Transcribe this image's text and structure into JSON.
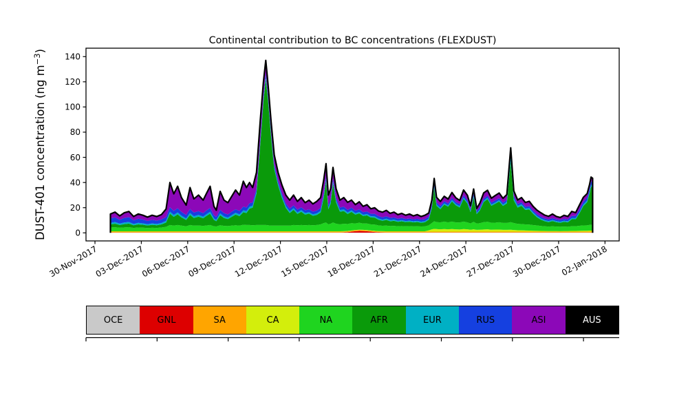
{
  "title": "Continental contribution to BC concentrations (FLEXDUST)",
  "legend": {
    "items": [
      {
        "label": "OCE",
        "color": "#c9c9c9",
        "text_color": "#000000"
      },
      {
        "label": "GNL",
        "color": "#dd0000",
        "text_color": "#000000"
      },
      {
        "label": "SA",
        "color": "#ffa500",
        "text_color": "#000000"
      },
      {
        "label": "CA",
        "color": "#d3ee0c",
        "text_color": "#000000"
      },
      {
        "label": "NA",
        "color": "#1fd41f",
        "text_color": "#000000"
      },
      {
        "label": "AFR",
        "color": "#0a9a0a",
        "text_color": "#000000"
      },
      {
        "label": "EUR",
        "color": "#00b0c4",
        "text_color": "#000000"
      },
      {
        "label": "RUS",
        "color": "#1540e0",
        "text_color": "#000000"
      },
      {
        "label": "ASI",
        "color": "#8c08b8",
        "text_color": "#000000"
      },
      {
        "label": "AUS",
        "color": "#000000",
        "text_color": "#ffffff"
      }
    ]
  },
  "chart_data": {
    "type": "area",
    "stacked": true,
    "grid": false,
    "legend_position": "bottom-strip",
    "title": "Continental contribution to BC concentrations (FLEXDUST)",
    "xlabel": "",
    "ylabel": "DUST-401 concentration (ng m−3)",
    "ylabel_main": "DUST-401 concentration (ng m",
    "ylabel_sup": "−3",
    "ylabel_close": ")",
    "ylim": [
      -6.4,
      146.7
    ],
    "ytick_values": [
      0,
      20,
      40,
      60,
      80,
      100,
      120,
      140
    ],
    "x_unit": "days since 30-Nov-2017",
    "xlim_days": [
      -0.58,
      33.92
    ],
    "xtick_days": [
      0,
      3,
      6,
      9,
      12,
      15,
      18,
      21,
      24,
      27,
      30,
      33
    ],
    "xtick_labels": [
      "30-Nov-2017",
      "03-Dec-2017",
      "06-Dec-2017",
      "09-Dec-2017",
      "12-Dec-2017",
      "15-Dec-2017",
      "18-Dec-2017",
      "21-Dec-2017",
      "24-Dec-2017",
      "27-Dec-2017",
      "30-Dec-2017",
      "02-Jan-2018"
    ],
    "outline_color": "#000000",
    "x": [
      1.0,
      1.3,
      1.6,
      1.9,
      2.2,
      2.5,
      2.8,
      3.1,
      3.4,
      3.7,
      4.0,
      4.3,
      4.6,
      4.85,
      5.1,
      5.35,
      5.6,
      5.9,
      6.15,
      6.4,
      6.7,
      7.0,
      7.2,
      7.45,
      7.7,
      7.85,
      8.1,
      8.35,
      8.6,
      8.85,
      9.1,
      9.35,
      9.6,
      9.8,
      10.0,
      10.2,
      10.45,
      10.7,
      10.9,
      11.05,
      11.2,
      11.4,
      11.6,
      11.85,
      12.1,
      12.35,
      12.6,
      12.85,
      13.1,
      13.35,
      13.6,
      13.85,
      14.1,
      14.35,
      14.6,
      14.8,
      14.95,
      15.1,
      15.25,
      15.4,
      15.6,
      15.85,
      16.1,
      16.35,
      16.6,
      16.85,
      17.1,
      17.35,
      17.6,
      17.85,
      18.1,
      18.35,
      18.6,
      18.85,
      19.1,
      19.35,
      19.6,
      19.85,
      20.1,
      20.35,
      20.6,
      20.85,
      21.1,
      21.35,
      21.6,
      21.8,
      21.95,
      22.1,
      22.35,
      22.6,
      22.85,
      23.1,
      23.35,
      23.6,
      23.85,
      24.1,
      24.3,
      24.5,
      24.7,
      24.9,
      25.15,
      25.4,
      25.65,
      25.9,
      26.15,
      26.4,
      26.65,
      26.9,
      27.1,
      27.35,
      27.6,
      27.85,
      28.1,
      28.35,
      28.6,
      28.85,
      29.1,
      29.35,
      29.6,
      29.85,
      30.1,
      30.35,
      30.6,
      30.85,
      31.1,
      31.35,
      31.6,
      31.85,
      32.0,
      32.1,
      32.2
    ],
    "series": [
      {
        "name": "OCE",
        "color": "#c9c9c9",
        "constant": 0.15
      },
      {
        "name": "GNL",
        "color": "#dd0000",
        "values": [
          0.15,
          0.15,
          0.15,
          0.15,
          0.15,
          0.15,
          0.15,
          0.15,
          0.15,
          0.15,
          0.15,
          0.15,
          0.15,
          0.15,
          0.15,
          0.15,
          0.15,
          0.15,
          0.15,
          0.15,
          0.15,
          0.15,
          0.15,
          0.15,
          0.15,
          0.15,
          0.15,
          0.15,
          0.15,
          0.15,
          0.15,
          0.15,
          0.15,
          0.15,
          0.15,
          0.15,
          0.15,
          0.15,
          0.15,
          0.15,
          0.15,
          0.15,
          0.15,
          0.15,
          0.15,
          0.15,
          0.15,
          0.15,
          0.15,
          0.15,
          0.15,
          0.15,
          0.15,
          0.15,
          0.15,
          0.15,
          0.15,
          0.15,
          0.15,
          0.15,
          0.15,
          0.15,
          0.2,
          0.4,
          0.8,
          1.2,
          1.4,
          1.3,
          1.1,
          0.8,
          0.5,
          0.3,
          0.2,
          0.15,
          0.15,
          0.15,
          0.15,
          0.15,
          0.15,
          0.15,
          0.15,
          0.15,
          0.15,
          0.15,
          0.15,
          0.15,
          0.15,
          0.15,
          0.15,
          0.15,
          0.15,
          0.15,
          0.15,
          0.15,
          0.15,
          0.15,
          0.15,
          0.15,
          0.15,
          0.15,
          0.15,
          0.15,
          0.15,
          0.15,
          0.15,
          0.15,
          0.15,
          0.15,
          0.15,
          0.15,
          0.15,
          0.15,
          0.15,
          0.15,
          0.15,
          0.15,
          0.15,
          0.15,
          0.15,
          0.15,
          0.15,
          0.15,
          0.15,
          0.15,
          0.15,
          0.15,
          0.15,
          0.15,
          0.15,
          0.15,
          0.15
        ]
      },
      {
        "name": "SA",
        "color": "#ffa500",
        "constant": 0.7
      },
      {
        "name": "CA",
        "color": "#d3ee0c",
        "values": [
          0.25,
          0.25,
          0.25,
          0.25,
          0.25,
          0.25,
          0.25,
          0.25,
          0.25,
          0.25,
          0.25,
          0.25,
          0.25,
          0.25,
          0.25,
          0.25,
          0.25,
          0.25,
          0.25,
          0.25,
          0.25,
          0.25,
          0.25,
          0.25,
          0.25,
          0.25,
          0.25,
          0.25,
          0.25,
          0.25,
          0.25,
          0.25,
          0.25,
          0.25,
          0.25,
          0.25,
          0.25,
          0.25,
          0.25,
          0.25,
          0.25,
          0.25,
          0.25,
          0.25,
          0.25,
          0.25,
          0.25,
          0.25,
          0.25,
          0.25,
          0.25,
          0.25,
          0.25,
          0.25,
          0.25,
          0.25,
          0.25,
          0.25,
          0.25,
          0.25,
          0.25,
          0.25,
          0.25,
          0.25,
          0.25,
          0.25,
          0.25,
          0.25,
          0.25,
          0.25,
          0.25,
          0.25,
          0.25,
          0.25,
          0.25,
          0.25,
          0.25,
          0.25,
          0.25,
          0.25,
          0.25,
          0.25,
          0.25,
          0.25,
          1.0,
          1.8,
          2.2,
          2.0,
          1.8,
          2.0,
          1.8,
          2.0,
          1.8,
          1.7,
          2.0,
          1.8,
          1.5,
          1.8,
          1.4,
          1.5,
          1.7,
          1.8,
          1.5,
          1.6,
          1.6,
          1.4,
          1.4,
          1.5,
          1.3,
          1.1,
          1.0,
          0.9,
          0.8,
          0.7,
          0.6,
          0.5,
          0.45,
          0.4,
          0.4,
          0.4,
          0.35,
          0.4,
          0.4,
          0.5,
          0.5,
          0.6,
          0.7,
          0.7,
          0.8,
          0.8,
          0.8
        ]
      },
      {
        "name": "NA",
        "color": "#1fd41f",
        "values": [
          3.0,
          3.2,
          2.8,
          3.1,
          3.3,
          2.7,
          3.0,
          2.9,
          2.6,
          2.8,
          2.7,
          3.0,
          3.5,
          5.0,
          4.5,
          5.0,
          4.5,
          4.0,
          5.0,
          4.5,
          4.6,
          4.3,
          4.6,
          5.0,
          4.0,
          3.8,
          4.8,
          4.3,
          4.2,
          4.5,
          4.8,
          4.5,
          5.2,
          5.0,
          5.0,
          4.8,
          5.0,
          5.0,
          5.0,
          5.0,
          4.8,
          4.5,
          4.5,
          4.5,
          4.5,
          4.5,
          4.5,
          5.0,
          4.8,
          5.0,
          4.8,
          5.0,
          4.8,
          5.0,
          5.5,
          6.5,
          7.0,
          5.5,
          6.0,
          7.0,
          6.0,
          5.5,
          6.0,
          5.5,
          5.8,
          5.2,
          5.5,
          5.0,
          5.2,
          4.8,
          5.0,
          4.5,
          4.3,
          4.5,
          4.2,
          4.3,
          4.0,
          4.2,
          4.0,
          4.1,
          3.9,
          4.0,
          3.8,
          3.9,
          4.0,
          5.0,
          6.0,
          5.5,
          5.5,
          6.0,
          5.5,
          6.0,
          5.5,
          5.5,
          6.0,
          5.5,
          5.0,
          6.0,
          5.0,
          5.2,
          5.8,
          6.0,
          5.5,
          5.5,
          5.8,
          5.5,
          5.5,
          6.0,
          5.5,
          5.0,
          5.0,
          4.8,
          4.8,
          4.5,
          4.3,
          4.0,
          3.8,
          3.6,
          3.8,
          3.6,
          3.5,
          3.6,
          3.5,
          3.8,
          3.8,
          4.0,
          4.2,
          4.3,
          4.5,
          4.5,
          4.5
        ]
      },
      {
        "name": "AFR",
        "color": "#0a9a0a",
        "values": [
          2.5,
          2.8,
          2.2,
          2.6,
          2.8,
          2.1,
          2.5,
          2.3,
          2.0,
          2.3,
          2.1,
          2.5,
          3.5,
          9.0,
          7.0,
          8.5,
          6.5,
          5.0,
          8.0,
          6.0,
          7.0,
          6.0,
          7.5,
          9.0,
          5.0,
          4.2,
          8.0,
          6.2,
          5.5,
          7.0,
          8.5,
          7.5,
          10.0,
          9.5,
          13.0,
          14.0,
          25.0,
          65.0,
          98.0,
          116.0,
          99.0,
          70.0,
          45.0,
          32.0,
          22.0,
          14.0,
          10.0,
          12.0,
          9.0,
          10.5,
          8.5,
          9.0,
          7.5,
          8.0,
          9.5,
          20.0,
          33.0,
          12.0,
          16.0,
          31.0,
          17.0,
          10.0,
          10.0,
          8.0,
          9.0,
          7.0,
          7.5,
          6.0,
          6.5,
          5.5,
          5.5,
          4.5,
          4.0,
          4.5,
          3.8,
          4.0,
          3.5,
          3.7,
          3.3,
          3.5,
          3.2,
          3.4,
          3.0,
          3.3,
          4.5,
          12.0,
          26.5,
          13.0,
          10.5,
          13.5,
          12.5,
          16.0,
          13.5,
          12.0,
          18.0,
          15.0,
          9.0,
          19.5,
          7.5,
          10.0,
          16.0,
          18.0,
          13.5,
          15.0,
          16.5,
          13.5,
          15.5,
          48.0,
          18.0,
          13.0,
          14.5,
          11.5,
          12.0,
          9.0,
          6.5,
          5.0,
          4.0,
          3.5,
          4.2,
          3.5,
          3.2,
          3.8,
          3.5,
          5.5,
          5.5,
          10.0,
          15.5,
          18.5,
          25.0,
          30.5,
          29.5
        ]
      },
      {
        "name": "EUR",
        "color": "#00b0c4",
        "values": [
          1.2,
          1.3,
          1.1,
          1.3,
          1.3,
          1.0,
          1.2,
          1.1,
          1.0,
          1.1,
          1.0,
          1.1,
          1.3,
          1.6,
          1.5,
          1.5,
          1.4,
          1.2,
          1.5,
          1.4,
          1.4,
          1.3,
          1.4,
          1.5,
          1.2,
          1.1,
          1.4,
          1.3,
          1.2,
          1.3,
          1.4,
          1.4,
          1.5,
          1.5,
          1.5,
          1.5,
          1.5,
          1.8,
          2.0,
          2.0,
          1.8,
          1.6,
          1.5,
          1.4,
          1.4,
          1.3,
          1.3,
          1.3,
          1.2,
          1.3,
          1.2,
          1.2,
          1.2,
          1.2,
          1.3,
          1.4,
          1.5,
          1.3,
          1.4,
          1.5,
          1.4,
          1.3,
          1.3,
          1.2,
          1.2,
          1.1,
          1.1,
          1.0,
          1.1,
          1.0,
          1.0,
          1.0,
          0.9,
          1.0,
          0.9,
          0.9,
          0.8,
          0.9,
          0.8,
          0.8,
          0.8,
          0.8,
          0.8,
          0.8,
          0.8,
          1.0,
          1.2,
          1.0,
          1.0,
          1.0,
          1.0,
          1.1,
          1.0,
          1.0,
          1.1,
          1.0,
          0.9,
          1.1,
          0.9,
          0.9,
          1.0,
          1.1,
          1.0,
          1.0,
          1.1,
          1.0,
          1.2,
          4.0,
          2.0,
          1.3,
          1.2,
          1.1,
          1.1,
          1.0,
          0.9,
          0.9,
          0.8,
          0.8,
          0.8,
          0.8,
          0.8,
          0.8,
          0.8,
          0.9,
          0.9,
          1.0,
          1.1,
          1.2,
          1.3,
          1.4,
          1.4
        ]
      },
      {
        "name": "RUS",
        "color": "#1540e0",
        "values": [
          3.5,
          3.8,
          3.0,
          3.6,
          3.8,
          2.9,
          3.3,
          3.0,
          2.6,
          2.9,
          2.7,
          2.8,
          3.0,
          3.5,
          3.2,
          3.3,
          3.0,
          2.8,
          3.2,
          3.0,
          3.0,
          2.8,
          2.9,
          3.0,
          2.5,
          2.3,
          2.8,
          2.6,
          2.5,
          2.7,
          2.8,
          2.7,
          3.0,
          2.8,
          2.8,
          2.6,
          2.5,
          2.5,
          2.5,
          2.5,
          2.4,
          2.3,
          2.2,
          2.2,
          2.2,
          2.2,
          2.2,
          2.3,
          2.2,
          2.2,
          2.2,
          2.2,
          2.1,
          2.2,
          2.2,
          2.3,
          2.3,
          2.2,
          2.2,
          2.3,
          2.2,
          2.1,
          2.2,
          2.1,
          2.1,
          2.0,
          2.1,
          2.0,
          2.0,
          1.9,
          2.0,
          1.9,
          1.8,
          1.9,
          1.8,
          1.8,
          1.7,
          1.8,
          1.7,
          1.7,
          1.6,
          1.7,
          1.6,
          1.6,
          1.6,
          1.7,
          1.8,
          1.7,
          1.6,
          1.7,
          1.6,
          1.7,
          1.6,
          1.6,
          1.7,
          1.6,
          1.5,
          1.6,
          1.5,
          1.5,
          1.6,
          1.6,
          1.6,
          1.6,
          1.6,
          1.6,
          1.6,
          2.0,
          1.7,
          1.6,
          1.6,
          1.5,
          1.5,
          1.5,
          1.5,
          1.4,
          1.4,
          1.4,
          1.5,
          1.4,
          1.4,
          1.5,
          1.5,
          1.7,
          1.7,
          2.0,
          2.2,
          2.4,
          2.6,
          2.7,
          2.7
        ]
      },
      {
        "name": "ASI",
        "color": "#8c08b8",
        "values": [
          3.5,
          4.1,
          3.1,
          4.1,
          4.5,
          3.0,
          3.7,
          3.4,
          3.0,
          3.6,
          3.2,
          3.8,
          6.4,
          19.6,
          13.5,
          17.4,
          11.3,
          7.7,
          17.0,
          10.8,
          12.7,
          10.3,
          13.3,
          17.2,
          7.0,
          5.3,
          14.7,
          10.3,
          9.3,
          12.2,
          15.2,
          12.6,
          20.0,
          15.9,
          16.4,
          11.8,
          12.7,
          14.4,
          11.2,
          10.2,
          8.7,
          8.3,
          7.5,
          6.6,
          6.6,
          6.7,
          6.7,
          8.1,
          6.5,
          7.7,
          6.0,
          7.3,
          6.1,
          7.3,
          8.2,
          10.5,
          9.9,
          7.7,
          8.1,
          8.9,
          7.1,
          5.8,
          7.2,
          5.9,
          6.0,
          4.8,
          5.9,
          4.6,
          5.3,
          4.0,
          4.8,
          4.0,
          4.1,
          4.7,
          3.5,
          4.2,
          3.2,
          3.6,
          2.9,
          3.6,
          2.7,
          3.3,
          2.5,
          3.1,
          2.8,
          3.5,
          4.5,
          4.0,
          3.5,
          3.8,
          3.4,
          4.2,
          3.4,
          2.9,
          4.2,
          3.9,
          2.6,
          3.8,
          2.1,
          3.4,
          4.6,
          4.3,
          3.4,
          3.9,
          4.0,
          3.4,
          4.2,
          5.0,
          3.8,
          3.1,
          3.7,
          3.3,
          3.8,
          3.3,
          3.2,
          3.1,
          2.6,
          2.4,
          3.2,
          2.3,
          1.9,
          2.8,
          2.3,
          3.6,
          2.6,
          3.5,
          3.5,
          3.1,
          3.1,
          3.4,
          3.4
        ]
      },
      {
        "name": "AUS",
        "color": "#000000",
        "constant": 0.05
      }
    ]
  }
}
